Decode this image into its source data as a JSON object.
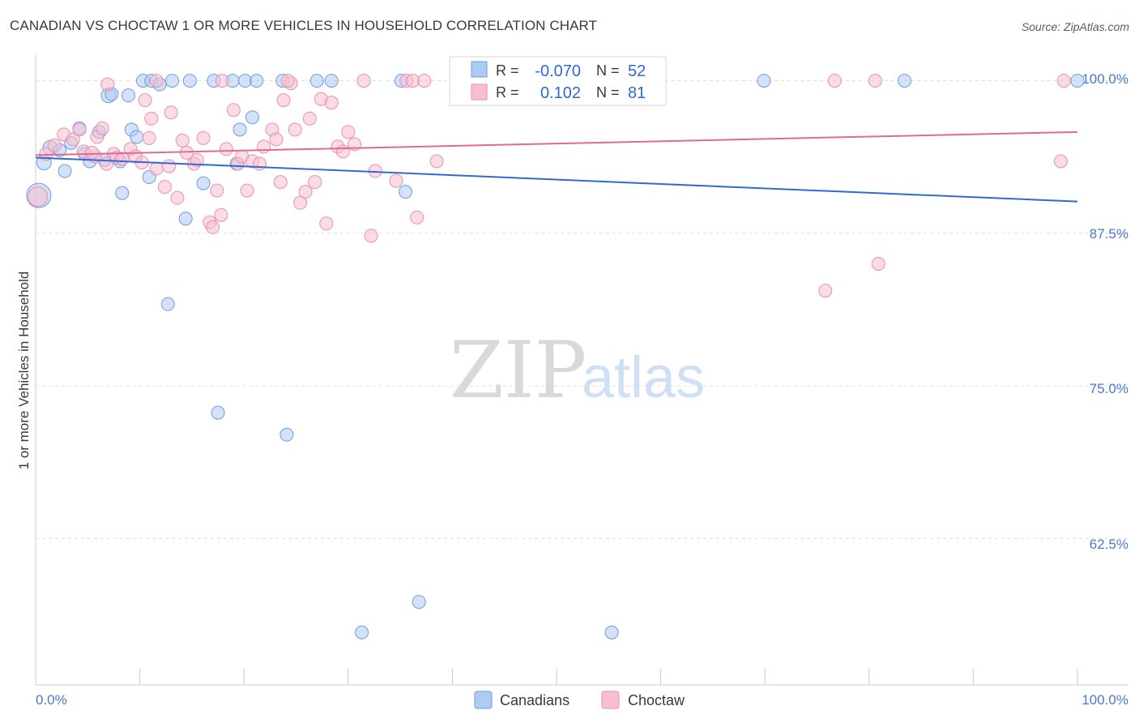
{
  "title": "CANADIAN VS CHOCTAW 1 OR MORE VEHICLES IN HOUSEHOLD CORRELATION CHART",
  "source": "Source: ZipAtlas.com",
  "watermark": {
    "part1": "ZIP",
    "part2": "atlas"
  },
  "colors": {
    "canadians_fill": "#aecbf2",
    "canadians_stroke": "#6f9be0",
    "canadians_line": "#2f6ad0",
    "choctaw_fill": "#f7bfd0",
    "choctaw_stroke": "#ea8fae",
    "choctaw_line": "#e06a95",
    "tick_text": "#4a79c8",
    "grid": "#dcdcdc"
  },
  "stats": {
    "canadians": {
      "r_label": "R =",
      "r_value": "-0.070",
      "n_label": "N =",
      "n_value": "52"
    },
    "choctaw": {
      "r_label": "R =",
      "r_value": "0.102",
      "n_label": "N =",
      "n_value": "81"
    }
  },
  "chart_data": {
    "type": "scatter",
    "title": "CANADIAN VS CHOCTAW 1 OR MORE VEHICLES IN HOUSEHOLD CORRELATION CHART",
    "xlabel": "",
    "ylabel": "1 or more Vehicles in Household",
    "xlim": [
      0,
      100
    ],
    "ylim": [
      50.5,
      101.3
    ],
    "x_tick_labels": [
      "0.0%",
      "100.0%"
    ],
    "y_ticks": [
      {
        "value": 100,
        "label": "100.0%"
      },
      {
        "value": 87.5,
        "label": "87.5%"
      },
      {
        "value": 75,
        "label": "75.0%"
      },
      {
        "value": 62.5,
        "label": "62.5%"
      }
    ],
    "legend": [
      "Canadians",
      "Choctaw"
    ],
    "series": [
      {
        "name": "Canadians",
        "trend": {
          "x": [
            0,
            100
          ],
          "y": [
            93.7,
            90.1
          ]
        },
        "points": [
          [
            0.3,
            90.6,
            15
          ],
          [
            0.8,
            93.3,
            9
          ],
          [
            1.4,
            94.5,
            9
          ],
          [
            2.3,
            94.3,
            8
          ],
          [
            2.8,
            92.6,
            8
          ],
          [
            3.4,
            94.9,
            8
          ],
          [
            4.2,
            96.1,
            8
          ],
          [
            4.7,
            94.0,
            8
          ],
          [
            5.2,
            93.4,
            8
          ],
          [
            6.1,
            95.8,
            8
          ],
          [
            6.6,
            93.5,
            8
          ],
          [
            7.0,
            98.8,
            9
          ],
          [
            7.3,
            98.9,
            8
          ],
          [
            8.1,
            93.4,
            8
          ],
          [
            8.3,
            90.8,
            8
          ],
          [
            8.9,
            98.8,
            8
          ],
          [
            9.2,
            96.0,
            8
          ],
          [
            9.7,
            95.4,
            8
          ],
          [
            10.3,
            100.0,
            8
          ],
          [
            10.9,
            92.1,
            8
          ],
          [
            11.1,
            100.0,
            8
          ],
          [
            11.9,
            99.7,
            8
          ],
          [
            12.7,
            81.7,
            8
          ],
          [
            13.1,
            100.0,
            8
          ],
          [
            14.4,
            88.7,
            8
          ],
          [
            14.8,
            100.0,
            8
          ],
          [
            16.1,
            91.6,
            8
          ],
          [
            17.1,
            100.0,
            8
          ],
          [
            17.5,
            72.8,
            8
          ],
          [
            18.9,
            100.0,
            8
          ],
          [
            19.3,
            93.2,
            8
          ],
          [
            19.6,
            96.0,
            8
          ],
          [
            20.1,
            100.0,
            8
          ],
          [
            20.8,
            97.0,
            8
          ],
          [
            21.2,
            100.0,
            8
          ],
          [
            23.7,
            100.0,
            8
          ],
          [
            24.1,
            71.0,
            8
          ],
          [
            27.0,
            100.0,
            8
          ],
          [
            28.4,
            100.0,
            8
          ],
          [
            31.3,
            54.8,
            8
          ],
          [
            35.1,
            100.0,
            8
          ],
          [
            35.5,
            90.9,
            8
          ],
          [
            36.8,
            57.3,
            8
          ],
          [
            41.2,
            100.0,
            8
          ],
          [
            42.3,
            100.0,
            8
          ],
          [
            45.3,
            100.0,
            8
          ],
          [
            45.8,
            100.0,
            8
          ],
          [
            55.3,
            54.8,
            8
          ],
          [
            56.5,
            100.0,
            8
          ],
          [
            69.9,
            100.0,
            8
          ],
          [
            83.4,
            100.0,
            8
          ],
          [
            100.0,
            100.0,
            8
          ]
        ]
      },
      {
        "name": "Choctaw",
        "trend": {
          "x": [
            0,
            100
          ],
          "y": [
            93.9,
            95.8
          ]
        },
        "points": [
          [
            0.2,
            90.5,
            12
          ],
          [
            1.0,
            94.0,
            8
          ],
          [
            1.8,
            94.7,
            8
          ],
          [
            2.7,
            95.6,
            8
          ],
          [
            3.6,
            95.2,
            8
          ],
          [
            4.2,
            96.0,
            8
          ],
          [
            4.6,
            94.2,
            8
          ],
          [
            5.7,
            93.8,
            8
          ],
          [
            5.9,
            95.4,
            8
          ],
          [
            6.4,
            96.1,
            8
          ],
          [
            6.8,
            93.2,
            8
          ],
          [
            7.5,
            94.0,
            8
          ],
          [
            7.8,
            93.7,
            8
          ],
          [
            8.3,
            93.6,
            8
          ],
          [
            9.1,
            94.4,
            8
          ],
          [
            9.6,
            93.8,
            8
          ],
          [
            10.2,
            93.3,
            8
          ],
          [
            10.5,
            98.4,
            8
          ],
          [
            10.9,
            95.3,
            8
          ],
          [
            11.1,
            96.9,
            8
          ],
          [
            11.6,
            92.8,
            8
          ],
          [
            12.4,
            91.3,
            8
          ],
          [
            12.8,
            93.0,
            8
          ],
          [
            13.0,
            97.4,
            8
          ],
          [
            13.6,
            90.4,
            8
          ],
          [
            14.1,
            95.1,
            8
          ],
          [
            14.5,
            94.1,
            8
          ],
          [
            15.2,
            93.2,
            8
          ],
          [
            15.5,
            93.5,
            8
          ],
          [
            16.1,
            95.3,
            8
          ],
          [
            16.7,
            88.4,
            8
          ],
          [
            17.0,
            88.0,
            8
          ],
          [
            17.4,
            91.0,
            8
          ],
          [
            17.8,
            89.0,
            8
          ],
          [
            18.3,
            94.4,
            8
          ],
          [
            19.0,
            97.6,
            8
          ],
          [
            19.4,
            93.2,
            8
          ],
          [
            19.8,
            93.8,
            8
          ],
          [
            20.3,
            91.0,
            8
          ],
          [
            20.8,
            93.4,
            8
          ],
          [
            21.5,
            93.2,
            8
          ],
          [
            21.9,
            94.6,
            8
          ],
          [
            22.7,
            96.0,
            8
          ],
          [
            23.1,
            95.2,
            8
          ],
          [
            23.5,
            91.7,
            8
          ],
          [
            23.8,
            98.4,
            8
          ],
          [
            24.5,
            99.8,
            8
          ],
          [
            24.9,
            96.0,
            8
          ],
          [
            25.4,
            90.0,
            8
          ],
          [
            25.9,
            90.9,
            8
          ],
          [
            26.3,
            96.9,
            8
          ],
          [
            26.8,
            91.7,
            8
          ],
          [
            27.4,
            98.5,
            8
          ],
          [
            27.9,
            88.3,
            8
          ],
          [
            28.4,
            98.2,
            8
          ],
          [
            29.0,
            94.6,
            8
          ],
          [
            29.5,
            94.2,
            8
          ],
          [
            30.0,
            95.8,
            8
          ],
          [
            30.6,
            94.8,
            8
          ],
          [
            32.2,
            87.3,
            8
          ],
          [
            32.6,
            92.6,
            8
          ],
          [
            34.6,
            91.8,
            8
          ],
          [
            35.6,
            100.0,
            8
          ],
          [
            36.2,
            100.0,
            8
          ],
          [
            36.6,
            88.8,
            8
          ],
          [
            37.3,
            100.0,
            8
          ],
          [
            38.5,
            93.4,
            8
          ],
          [
            41.6,
            100.0,
            8
          ],
          [
            48.9,
            100.0,
            8
          ],
          [
            75.8,
            82.8,
            8
          ],
          [
            76.7,
            100.0,
            8
          ],
          [
            80.6,
            100.0,
            8
          ],
          [
            80.9,
            85.0,
            8
          ],
          [
            98.4,
            93.4,
            8
          ],
          [
            98.7,
            100.0,
            8
          ],
          [
            31.5,
            100.0,
            8
          ],
          [
            24.2,
            100.0,
            8
          ],
          [
            17.9,
            100.0,
            8
          ],
          [
            11.6,
            100.0,
            8
          ],
          [
            6.9,
            99.7,
            8
          ],
          [
            5.4,
            94.1,
            8
          ]
        ]
      }
    ]
  }
}
